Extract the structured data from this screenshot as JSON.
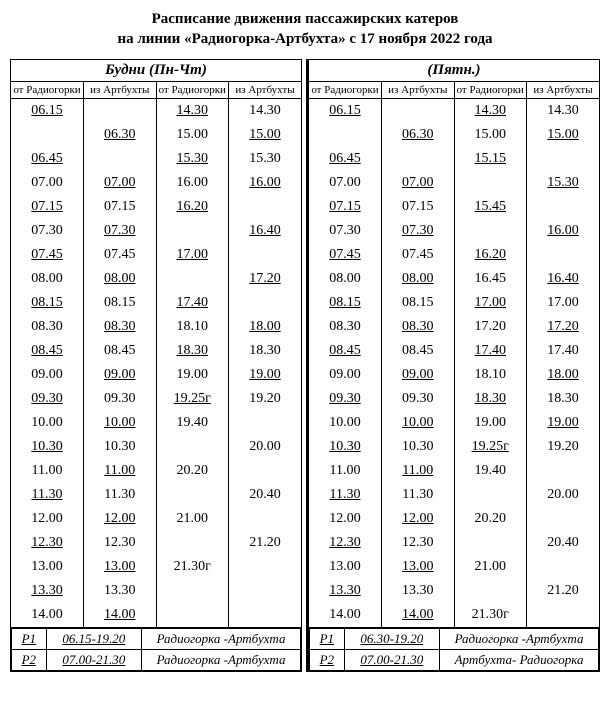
{
  "title_line1": "Расписание движения пассажирских катеров",
  "title_line2": "на линии «Радиогорка-Артбухта» с  17 ноября  2022 года",
  "weekdays_label": "Будни (Пн-Чт)",
  "friday_label": "(Пятн.)",
  "col_headers": {
    "a": "от Радиогорки",
    "b": "из Артбухты",
    "c": "от Радиогорки",
    "d": "из Артбухты"
  },
  "weekdays": [
    [
      "06.15u",
      "",
      "14.30u",
      "14.30"
    ],
    [
      "",
      "06.30u",
      "15.00",
      "15.00u"
    ],
    [
      "06.45u",
      "",
      "15.30u",
      "15.30"
    ],
    [
      "07.00",
      "07.00u",
      "16.00",
      "16.00u"
    ],
    [
      "07.15u",
      "07.15",
      "16.20u",
      ""
    ],
    [
      "07.30",
      "07.30u",
      "",
      "16.40u"
    ],
    [
      "07.45u",
      "07.45",
      "17.00u",
      ""
    ],
    [
      "08.00",
      "08.00u",
      "",
      "17.20u"
    ],
    [
      "08.15u",
      "08.15",
      "17.40u",
      ""
    ],
    [
      "08.30",
      "08.30u",
      "18.10",
      "18.00u"
    ],
    [
      "08.45u",
      "08.45",
      "18.30u",
      "18.30"
    ],
    [
      "09.00",
      "09.00u",
      "19.00",
      "19.00u"
    ],
    [
      "09.30u",
      "09.30",
      "19.25гu",
      "19.20"
    ],
    [
      "10.00",
      "10.00u",
      "19.40",
      ""
    ],
    [
      "10.30u",
      "10.30",
      "",
      "20.00"
    ],
    [
      "11.00",
      "11.00u",
      "20.20",
      ""
    ],
    [
      "11.30u",
      "11.30",
      "",
      "20.40"
    ],
    [
      "12.00",
      "12.00u",
      "21.00",
      ""
    ],
    [
      "12.30u",
      "12.30",
      "",
      "21.20"
    ],
    [
      "13.00",
      "13.00u",
      "21.30г",
      ""
    ],
    [
      "13.30u",
      "13.30",
      "",
      ""
    ],
    [
      "14.00",
      "14.00u",
      "",
      ""
    ]
  ],
  "friday": [
    [
      "06.15u",
      "",
      "14.30u",
      "14.30"
    ],
    [
      "",
      "06.30u",
      "15.00",
      "15.00u"
    ],
    [
      "06.45u",
      "",
      "15.15u",
      ""
    ],
    [
      "07.00",
      "07.00u",
      "",
      "15.30u"
    ],
    [
      "07.15u",
      "07.15",
      "15.45u",
      ""
    ],
    [
      "07.30",
      "07.30u",
      "",
      "16.00u"
    ],
    [
      "07.45u",
      "07.45",
      "16.20u",
      ""
    ],
    [
      "08.00",
      "08.00u",
      "16.45",
      "16.40u"
    ],
    [
      "08.15u",
      "08.15",
      "17.00u",
      "17.00"
    ],
    [
      "08.30",
      "08.30u",
      "17.20",
      "17.20u"
    ],
    [
      "08.45u",
      "08.45",
      "17.40u",
      "17.40"
    ],
    [
      "09.00",
      "09.00u",
      "18.10",
      "18.00u"
    ],
    [
      "09.30u",
      "09.30",
      "18.30u",
      "18.30"
    ],
    [
      "10.00",
      "10.00u",
      "19.00",
      "19.00u"
    ],
    [
      "10.30u",
      "10.30",
      "19.25гu",
      "19.20"
    ],
    [
      "11.00",
      "11.00u",
      "19.40",
      ""
    ],
    [
      "11.30u",
      "11.30",
      "",
      "20.00"
    ],
    [
      "12.00",
      "12.00u",
      "20.20",
      ""
    ],
    [
      "12.30u",
      "12.30",
      "",
      "20.40"
    ],
    [
      "13.00",
      "13.00u",
      "21.00",
      ""
    ],
    [
      "13.30u",
      "13.30",
      "",
      "21.20"
    ],
    [
      "14.00",
      "14.00u",
      "21.30г",
      ""
    ]
  ],
  "footer_weekdays": [
    {
      "p": "Р1",
      "time": "06.15-19.20",
      "route": "Радиогорка -Артбухта"
    },
    {
      "p": "Р2",
      "time": "07.00-21.30",
      "route": "Радиогорка -Артбухта"
    }
  ],
  "footer_friday": [
    {
      "p": "Р1",
      "time": "06.30-19.20",
      "route": "Радиогорка -Артбухта"
    },
    {
      "p": "Р2",
      "time": "07.00-21.30",
      "route": "Артбухта- Радиогорка"
    }
  ]
}
